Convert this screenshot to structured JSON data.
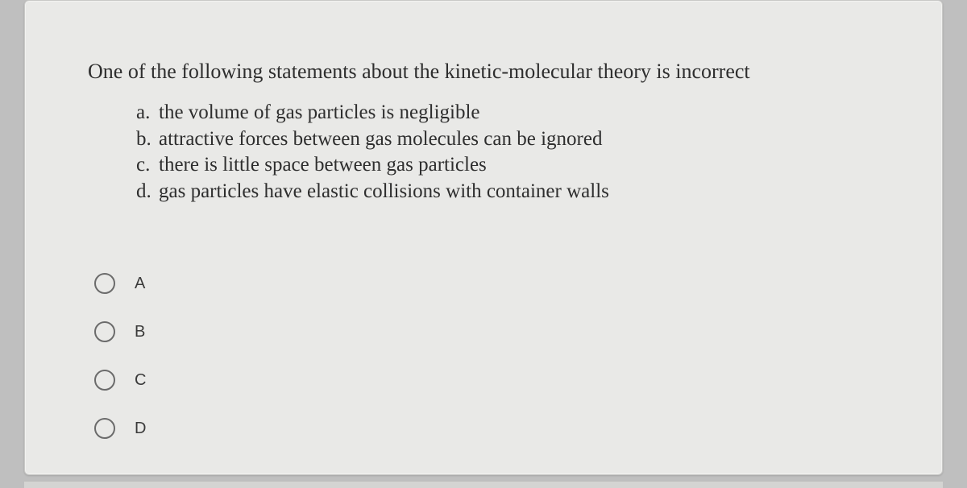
{
  "question": {
    "prompt": "One of the following statements about the kinetic-molecular theory is incorrect",
    "statements": [
      {
        "letter": "a.",
        "text": "the volume of gas particles is negligible"
      },
      {
        "letter": "b.",
        "text": "attractive forces between gas molecules can be ignored"
      },
      {
        "letter": "c.",
        "text": "there is little space between gas particles"
      },
      {
        "letter": "d.",
        "text": "gas particles have elastic collisions with container walls"
      }
    ],
    "options": [
      {
        "label": "A"
      },
      {
        "label": "B"
      },
      {
        "label": "C"
      },
      {
        "label": "D"
      }
    ]
  },
  "colors": {
    "page_bg": "#bfbfbf",
    "card_bg": "#e9e9e7",
    "text": "#2e2e2e",
    "radio_border": "#6b6b6b"
  }
}
